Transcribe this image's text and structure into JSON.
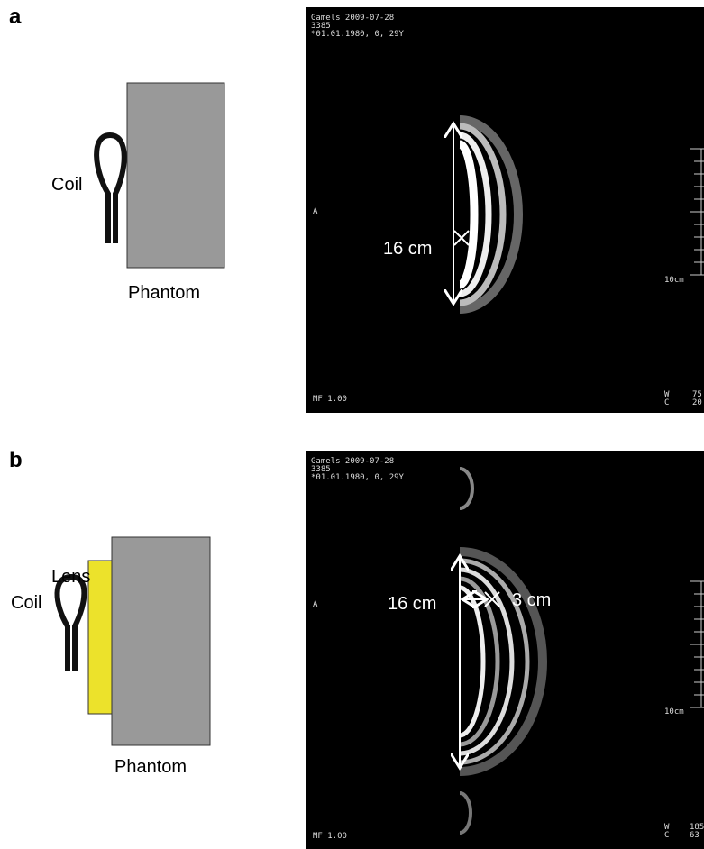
{
  "panels": [
    {
      "label": "a",
      "coil": "Coil",
      "phantom": "Phantom",
      "scan": {
        "header": [
          "Gamels 2009-07-28",
          "3385",
          "*01.01.1980, 0, 29Y"
        ],
        "orientation": "A",
        "scale": "10cm",
        "mf": "MF 1.00",
        "wl": [
          "W",
          "C"
        ],
        "wl_values": [
          "75",
          "20"
        ],
        "length": "16 cm"
      }
    },
    {
      "label": "b",
      "coil": "Coil",
      "lens": "Lens",
      "phantom": "Phantom",
      "scan": {
        "header": [
          "Gamels 2009-07-28",
          "3385",
          "*01.01.1980, 0, 29Y"
        ],
        "orientation": "A",
        "scale": "10cm",
        "mf": "MF 1.00",
        "wl": [
          "W",
          "C"
        ],
        "wl_values": [
          "185",
          "63"
        ],
        "length": "16 cm",
        "depth": "3 cm"
      }
    }
  ]
}
